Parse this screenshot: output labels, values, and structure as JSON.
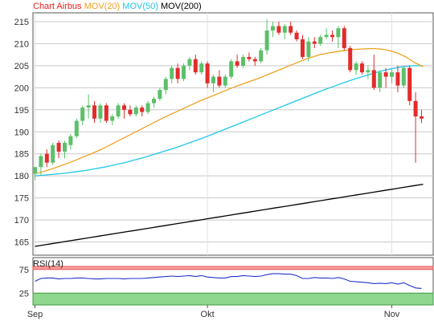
{
  "chart_data": [
    {
      "type": "candlestick",
      "legend": [
        {
          "label": "Chart Airbus",
          "color": "#e8211d"
        },
        {
          "label": "MOV(20)",
          "color": "#f0a21e"
        },
        {
          "label": "MOV(50)",
          "color": "#1ec8e6"
        },
        {
          "label": "MOV(200)",
          "color": "#000000"
        }
      ],
      "ylim": [
        162,
        217
      ],
      "yticks": [
        "165",
        "170",
        "175",
        "180",
        "185",
        "190",
        "195",
        "200",
        "205",
        "210",
        "215"
      ],
      "xticks": [
        {
          "label": "Sep",
          "index": 0
        },
        {
          "label": "Okt",
          "index": 29
        },
        {
          "label": "Nov",
          "index": 60
        },
        {
          "label": "De",
          "index": 86
        }
      ],
      "grid": true,
      "colors": {
        "up": "#5cc06a",
        "down": "#e32b2b"
      },
      "ohlc": [
        [
          180.5,
          182.0,
          179.0,
          182.0
        ],
        [
          182.0,
          185.0,
          180.0,
          184.5
        ],
        [
          185.0,
          186.0,
          182.0,
          183.0
        ],
        [
          183.0,
          187.5,
          182.5,
          187.0
        ],
        [
          187.5,
          188.0,
          184.0,
          185.5
        ],
        [
          185.5,
          188.0,
          184.0,
          187.5
        ],
        [
          187.0,
          189.5,
          186.0,
          189.0
        ],
        [
          189.0,
          193.0,
          188.5,
          192.5
        ],
        [
          192.5,
          196.0,
          191.5,
          195.5
        ],
        [
          195.5,
          198.5,
          193.0,
          196.0
        ],
        [
          196.0,
          197.0,
          192.0,
          193.0
        ],
        [
          193.0,
          196.5,
          192.0,
          196.0
        ],
        [
          196.0,
          196.5,
          192.0,
          192.5
        ],
        [
          192.5,
          194.0,
          191.5,
          193.5
        ],
        [
          193.5,
          196.5,
          193.0,
          196.0
        ],
        [
          196.0,
          196.5,
          193.0,
          195.0
        ],
        [
          195.0,
          196.0,
          193.5,
          194.0
        ],
        [
          194.0,
          196.0,
          193.5,
          195.5
        ],
        [
          195.5,
          196.0,
          193.5,
          194.5
        ],
        [
          194.5,
          197.0,
          194.0,
          196.5
        ],
        [
          196.5,
          198.0,
          195.5,
          197.5
        ],
        [
          197.5,
          200.0,
          197.0,
          199.5
        ],
        [
          199.5,
          202.5,
          198.5,
          202.0
        ],
        [
          202.0,
          205.0,
          201.0,
          204.5
        ],
        [
          204.5,
          205.5,
          201.0,
          202.0
        ],
        [
          202.0,
          205.5,
          201.5,
          205.0
        ],
        [
          205.0,
          207.0,
          204.0,
          206.5
        ],
        [
          206.5,
          207.5,
          203.0,
          203.5
        ],
        [
          203.5,
          206.0,
          203.0,
          205.5
        ],
        [
          205.5,
          206.0,
          200.0,
          201.0
        ],
        [
          201.0,
          203.0,
          199.0,
          202.5
        ],
        [
          202.5,
          204.0,
          200.0,
          200.5
        ],
        [
          200.5,
          203.0,
          200.0,
          202.5
        ],
        [
          202.5,
          206.5,
          202.0,
          206.0
        ],
        [
          206.0,
          207.5,
          204.5,
          205.0
        ],
        [
          205.0,
          207.5,
          204.5,
          207.0
        ],
        [
          207.0,
          208.0,
          206.0,
          206.5
        ],
        [
          206.5,
          207.0,
          205.0,
          206.0
        ],
        [
          206.0,
          209.0,
          205.5,
          208.5
        ],
        [
          208.5,
          215.5,
          207.5,
          213.0
        ],
        [
          213.0,
          215.0,
          211.5,
          214.0
        ],
        [
          214.0,
          215.0,
          212.0,
          212.5
        ],
        [
          212.5,
          214.5,
          211.0,
          214.0
        ],
        [
          214.0,
          215.0,
          212.0,
          212.5
        ],
        [
          212.5,
          213.0,
          210.5,
          211.0
        ],
        [
          211.0,
          212.0,
          206.5,
          207.0
        ],
        [
          207.0,
          211.5,
          206.0,
          210.5
        ],
        [
          210.5,
          211.5,
          209.0,
          210.0
        ],
        [
          210.0,
          212.0,
          209.5,
          211.5
        ],
        [
          211.5,
          213.5,
          211.0,
          212.0
        ],
        [
          212.0,
          213.0,
          210.5,
          211.5
        ],
        [
          211.5,
          214.0,
          209.0,
          213.5
        ],
        [
          213.5,
          214.0,
          208.5,
          209.0
        ],
        [
          209.0,
          209.5,
          203.5,
          204.0
        ],
        [
          204.0,
          206.0,
          203.0,
          205.5
        ],
        [
          205.5,
          206.0,
          203.0,
          203.5
        ],
        [
          203.5,
          205.0,
          202.0,
          204.0
        ],
        [
          204.0,
          207.5,
          199.5,
          200.0
        ],
        [
          200.0,
          204.0,
          199.0,
          203.5
        ],
        [
          203.5,
          204.5,
          200.0,
          202.5
        ],
        [
          202.5,
          204.5,
          201.0,
          203.5
        ],
        [
          203.5,
          205.0,
          199.0,
          200.5
        ],
        [
          200.5,
          205.0,
          200.0,
          204.5
        ],
        [
          204.5,
          205.0,
          196.0,
          197.0
        ],
        [
          197.0,
          199.0,
          183.0,
          193.5
        ],
        [
          193.5,
          195.0,
          192.0,
          193.0
        ]
      ],
      "ma20": [
        180.5,
        181.0,
        181.6,
        182.3,
        183.0,
        183.8,
        184.6,
        185.4,
        186.3,
        187.3,
        188.3,
        189.3,
        190.3,
        191.3,
        192.3,
        193.3,
        194.2,
        195.1,
        196.0,
        196.9,
        197.7,
        198.5,
        199.3,
        200.1,
        200.8,
        201.5,
        202.2,
        203.0,
        203.8,
        204.6,
        205.4,
        206.2,
        206.9,
        207.5,
        207.9,
        208.2,
        208.5,
        208.7,
        208.8,
        208.9,
        208.8,
        208.5,
        207.9,
        207.0,
        205.7,
        204.8
      ],
      "ma50": [
        180.0,
        180.2,
        180.4,
        180.6,
        180.9,
        181.2,
        181.6,
        182.0,
        182.5,
        183.0,
        183.6,
        184.2,
        184.9,
        185.6,
        186.3,
        187.1,
        187.9,
        188.7,
        189.6,
        190.5,
        191.4,
        192.3,
        193.2,
        194.1,
        195.0,
        195.9,
        196.8,
        197.7,
        198.6,
        199.5,
        200.3,
        201.1,
        201.9,
        202.6,
        203.3,
        203.9,
        204.4,
        204.8,
        205.0,
        205.0
      ],
      "ma200": [
        164.0,
        164.3,
        164.6,
        164.9,
        165.2,
        165.5,
        165.8,
        166.1,
        166.4,
        166.7,
        167.0,
        167.3,
        167.6,
        167.9,
        168.2,
        168.5,
        168.8,
        169.1,
        169.4,
        169.7,
        170.0,
        170.3,
        170.6,
        170.9,
        171.2,
        171.5,
        171.8,
        172.1,
        172.4,
        172.7,
        173.0,
        173.3,
        173.6,
        173.9,
        174.2,
        174.5,
        174.8,
        175.1,
        175.4,
        175.7,
        176.0,
        176.3,
        176.6,
        176.9,
        177.2,
        177.5,
        177.8,
        178.1
      ],
      "rsi": {
        "label": "RSI(14)",
        "ylim": [
          0,
          100
        ],
        "yticks": [
          "25",
          "75"
        ],
        "overbought": 75,
        "oversold": 25,
        "values": [
          50,
          56,
          57,
          57,
          55,
          56,
          56,
          57,
          57,
          56,
          55,
          55,
          56,
          56,
          56,
          55,
          56,
          56,
          56,
          57,
          58,
          59,
          60,
          61,
          60,
          61,
          62,
          60,
          62,
          59,
          58,
          57,
          57,
          60,
          60,
          62,
          61,
          60,
          61,
          64,
          66,
          66,
          65,
          65,
          62,
          56,
          56,
          58,
          57,
          57,
          56,
          58,
          55,
          50,
          49,
          48,
          47,
          45,
          46,
          45,
          47,
          44,
          47,
          41,
          36,
          35
        ]
      }
    }
  ]
}
